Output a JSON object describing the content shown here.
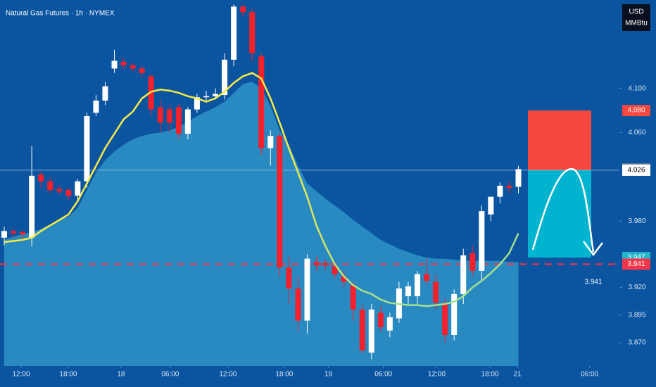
{
  "chart_data": {
    "type": "candlestick",
    "title": "Natural Gas Futures · 1h · NYMEX",
    "currency": "USD",
    "unit": "MMBtu",
    "up_color": "#ffffff",
    "down_color": "#f2212b",
    "ylim": [
      3.849,
      4.18
    ],
    "xlim": [
      -0.46,
      67
    ],
    "yticks": [
      {
        "value": 4.1,
        "label": "4.100"
      },
      {
        "value": 4.06,
        "label": "4.060"
      },
      {
        "value": 3.98,
        "label": "3.980"
      },
      {
        "value": 3.92,
        "label": "3.920"
      },
      3.895,
      {
        "value": 3.87,
        "label": "3.870"
      }
    ],
    "xticks": [
      {
        "value": 1.84,
        "label": "12:00"
      },
      {
        "value": 6.97,
        "label": "18:00"
      },
      {
        "value": 12.72,
        "label": "18"
      },
      {
        "value": 18.08,
        "label": "06:00"
      },
      {
        "value": 24.37,
        "label": "12:00"
      },
      {
        "value": 30.5,
        "label": "18:00"
      },
      {
        "value": 35.3,
        "label": "19"
      },
      {
        "value": 41.3,
        "label": "06:00"
      },
      {
        "value": 47.1,
        "label": "12:00"
      },
      {
        "value": 52.9,
        "label": "18:00"
      },
      {
        "value": 55.9,
        "label": "21"
      },
      {
        "value": 63.75,
        "label": "06:00"
      }
    ],
    "ohlc": [
      [
        3.965,
        3.975,
        3.958,
        3.971
      ],
      [
        3.971,
        3.973,
        3.965,
        3.969
      ],
      [
        3.97,
        3.972,
        3.962,
        3.968
      ],
      [
        3.965,
        4.048,
        3.957,
        4.021
      ],
      [
        4.022,
        4.025,
        4.01,
        4.016
      ],
      [
        4.016,
        4.02,
        4.005,
        4.008
      ],
      [
        4.009,
        4.012,
        4.004,
        4.007
      ],
      [
        4.008,
        4.01,
        3.999,
        4.003
      ],
      [
        4.003,
        4.018,
        3.998,
        4.016
      ],
      [
        4.016,
        4.078,
        4.01,
        4.075
      ],
      [
        4.078,
        4.094,
        4.075,
        4.089
      ],
      [
        4.089,
        4.106,
        4.085,
        4.102
      ],
      [
        4.118,
        4.135,
        4.114,
        4.125
      ],
      [
        4.124,
        4.127,
        4.118,
        4.121
      ],
      [
        4.121,
        4.123,
        4.115,
        4.118
      ],
      [
        4.118,
        4.12,
        4.11,
        4.114
      ],
      [
        4.111,
        4.113,
        4.075,
        4.081
      ],
      [
        4.083,
        4.09,
        4.06,
        4.069
      ],
      [
        4.081,
        4.085,
        4.06,
        4.069
      ],
      [
        4.083,
        4.086,
        4.054,
        4.059
      ],
      [
        4.059,
        4.083,
        4.054,
        4.081
      ],
      [
        4.081,
        4.095,
        4.078,
        4.092
      ],
      [
        4.092,
        4.098,
        4.088,
        4.093
      ],
      [
        4.093,
        4.1,
        4.09,
        4.095
      ],
      [
        4.094,
        4.132,
        4.09,
        4.126
      ],
      [
        4.126,
        4.176,
        4.12,
        4.174
      ],
      [
        4.174,
        4.176,
        4.165,
        4.169
      ],
      [
        4.169,
        4.172,
        4.125,
        4.132
      ],
      [
        4.129,
        4.132,
        4.04,
        4.046
      ],
      [
        4.046,
        4.062,
        4.03,
        4.057
      ],
      [
        4.057,
        4.06,
        3.93,
        3.938
      ],
      [
        3.938,
        3.948,
        3.905,
        3.919
      ],
      [
        3.919,
        3.93,
        3.88,
        3.89
      ],
      [
        3.89,
        3.95,
        3.878,
        3.946
      ],
      [
        3.943,
        3.948,
        3.935,
        3.94
      ],
      [
        3.942,
        3.945,
        3.936,
        3.94
      ],
      [
        3.939,
        3.943,
        3.928,
        3.932
      ],
      [
        3.93,
        3.935,
        3.92,
        3.925
      ],
      [
        3.922,
        3.925,
        3.89,
        3.9
      ],
      [
        3.9,
        3.905,
        3.86,
        3.863
      ],
      [
        3.861,
        3.905,
        3.855,
        3.9
      ],
      [
        3.897,
        3.903,
        3.88,
        3.884
      ],
      [
        3.881,
        3.897,
        3.875,
        3.893
      ],
      [
        3.892,
        3.925,
        3.888,
        3.919
      ],
      [
        3.912,
        3.925,
        3.905,
        3.921
      ],
      [
        3.912,
        3.935,
        3.905,
        3.932
      ],
      [
        3.932,
        3.946,
        3.922,
        3.926
      ],
      [
        3.925,
        3.932,
        3.9,
        3.906
      ],
      [
        3.906,
        3.91,
        3.87,
        3.877
      ],
      [
        3.877,
        3.918,
        3.872,
        3.914
      ],
      [
        3.914,
        3.955,
        3.905,
        3.949
      ],
      [
        3.951,
        3.958,
        3.93,
        3.935
      ],
      [
        3.935,
        3.994,
        3.925,
        3.989
      ],
      [
        3.986,
        4.002,
        3.98,
        4.002
      ],
      [
        4.002,
        4.015,
        3.996,
        4.012
      ],
      [
        4.012,
        4.016,
        4.005,
        4.01
      ],
      [
        4.011,
        4.03,
        4.005,
        4.027
      ]
    ],
    "series": [
      {
        "type": "line",
        "colors": [
          "#f7ea45",
          "#a6e08c"
        ],
        "values": [
          3.961,
          3.962,
          3.963,
          3.965,
          3.971,
          3.976,
          3.981,
          3.986,
          3.998,
          4.014,
          4.03,
          4.046,
          4.059,
          4.072,
          4.079,
          4.091,
          4.097,
          4.099,
          4.098,
          4.096,
          4.093,
          4.091,
          4.088,
          4.091,
          4.097,
          4.105,
          4.111,
          4.114,
          4.109,
          4.091,
          4.069,
          4.046,
          4.024,
          4.002,
          3.976,
          3.957,
          3.941,
          3.93,
          3.922,
          3.917,
          3.914,
          3.909,
          3.906,
          3.905,
          3.904,
          3.904,
          3.903,
          3.904,
          3.905,
          3.907,
          3.912,
          3.92,
          3.926,
          3.933,
          3.941,
          3.951,
          3.969
        ]
      },
      {
        "type": "area",
        "colors": [
          "#2f94c8"
        ],
        "values": [
          3.963,
          3.966,
          3.968,
          3.97,
          3.973,
          3.977,
          3.981,
          3.984,
          3.992,
          4.008,
          4.024,
          4.035,
          4.043,
          4.049,
          4.054,
          4.057,
          4.059,
          4.06,
          4.062,
          4.065,
          4.07,
          4.075,
          4.079,
          4.083,
          4.088,
          4.096,
          4.104,
          4.106,
          4.1,
          4.084,
          4.062,
          4.049,
          4.03,
          4.014,
          4.007,
          4.0,
          3.994,
          3.988,
          3.981,
          3.975,
          3.969,
          3.963,
          3.959,
          3.955,
          3.952,
          3.949,
          3.947,
          3.946,
          3.946,
          3.945,
          3.944,
          3.944,
          3.944,
          3.944,
          3.944,
          3.943,
          3.943
        ]
      }
    ],
    "position": {
      "entry": 4.026,
      "stop": 4.08,
      "target": 3.947,
      "stop_color": "#f4473d",
      "target_color": "#00b4cf"
    },
    "crosshair": 4.026,
    "level": {
      "value": 3.941,
      "color": "#f2364a"
    },
    "price_labels": [
      {
        "value": 4.08,
        "label": "4.080",
        "color": "#f4473d",
        "text_color": "#ffffff"
      },
      {
        "value": 4.027,
        "label": "4.027",
        "color": "#8a8f99",
        "text_color": "#ffffff"
      },
      {
        "value": 4.026,
        "label": "4.026",
        "color": "#ffffff",
        "text_color": "#000000"
      },
      {
        "value": 3.947,
        "label": "3.947",
        "color": "#22b5cc",
        "text_color": "#ffffff"
      },
      {
        "value": 3.941,
        "label": "3.941",
        "color": "#f2364a",
        "text_color": "#ffffff"
      }
    ],
    "annotation": "3.941"
  }
}
